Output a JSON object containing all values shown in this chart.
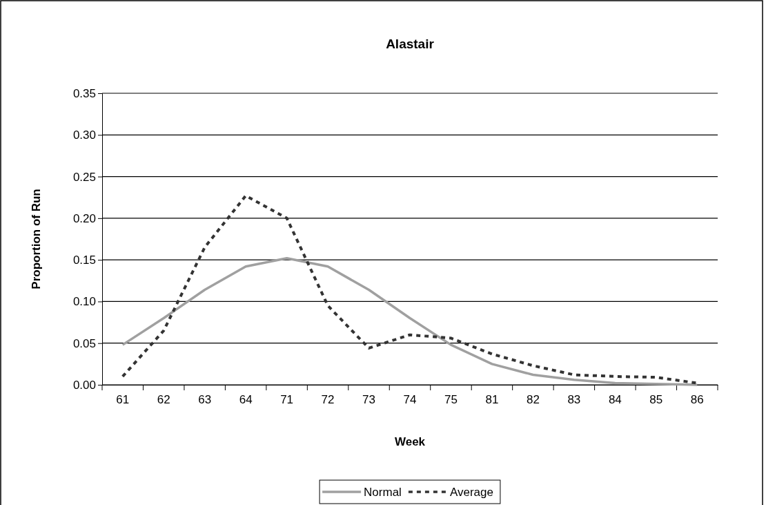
{
  "chart_data": {
    "type": "line",
    "title": "Alastair",
    "xlabel": "Week",
    "ylabel": "Proportion of Run",
    "categories": [
      "61",
      "62",
      "63",
      "64",
      "71",
      "72",
      "73",
      "74",
      "75",
      "81",
      "82",
      "83",
      "84",
      "85",
      "86"
    ],
    "series": [
      {
        "name": "Normal",
        "color": "#a0a0a0",
        "line_style": "solid",
        "values": [
          0.048,
          0.08,
          0.114,
          0.142,
          0.152,
          0.142,
          0.114,
          0.08,
          0.048,
          0.025,
          0.012,
          0.006,
          0.002,
          0.001,
          0.0
        ]
      },
      {
        "name": "Average",
        "color": "#333333",
        "line_style": "dashed",
        "values": [
          0.01,
          0.065,
          0.165,
          0.227,
          0.2,
          0.095,
          0.044,
          0.06,
          0.056,
          0.037,
          0.023,
          0.012,
          0.01,
          0.009,
          0.002
        ]
      }
    ],
    "ylim": [
      0,
      0.35
    ],
    "yticks": [
      {
        "value": 0,
        "label": "0.00"
      },
      {
        "value": 0.05,
        "label": "0.05"
      },
      {
        "value": 0.1,
        "label": "0.10"
      },
      {
        "value": 0.15,
        "label": "0.15"
      },
      {
        "value": 0.2,
        "label": "0.20"
      },
      {
        "value": 0.25,
        "label": "0.25"
      },
      {
        "value": 0.3,
        "label": "0.30"
      },
      {
        "value": 0.35,
        "label": "0.35"
      }
    ],
    "grid": "y",
    "legend": "bottom",
    "marker": "none"
  }
}
